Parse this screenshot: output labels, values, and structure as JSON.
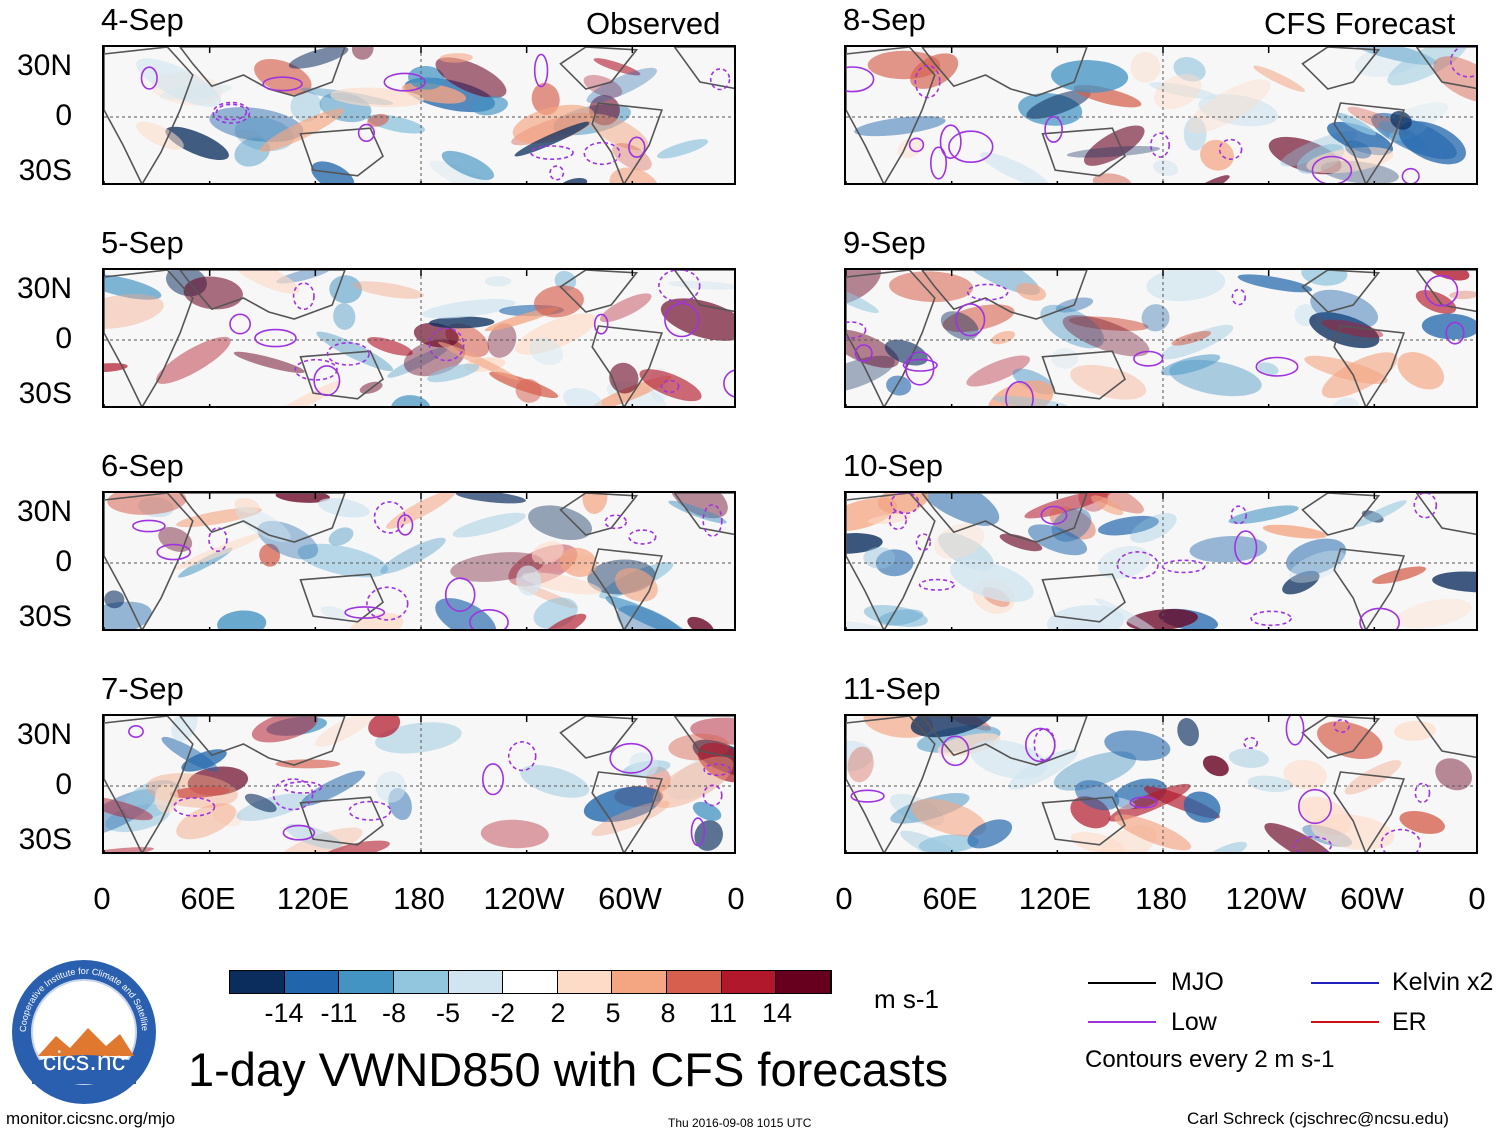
{
  "columns": {
    "left_title": "Observed",
    "right_title": "CFS Forecast"
  },
  "panels": {
    "left": [
      {
        "date": "4-Sep"
      },
      {
        "date": "5-Sep"
      },
      {
        "date": "6-Sep"
      },
      {
        "date": "7-Sep"
      }
    ],
    "right": [
      {
        "date": "8-Sep"
      },
      {
        "date": "9-Sep"
      },
      {
        "date": "10-Sep"
      },
      {
        "date": "11-Sep"
      }
    ]
  },
  "lat_labels": [
    "30N",
    "0",
    "30S"
  ],
  "lon_labels": [
    "0",
    "60E",
    "120E",
    "180",
    "120W",
    "60W",
    "0"
  ],
  "colorbar": {
    "colors": [
      "#0b2d5e",
      "#2166ac",
      "#4393c3",
      "#92c5de",
      "#d1e5f0",
      "#ffffff",
      "#fddbc7",
      "#f4a582",
      "#d6604d",
      "#b2182b",
      "#67001f"
    ],
    "tick_labels": [
      "-14",
      "-11",
      "-8",
      "-5",
      "-2",
      "2",
      "5",
      "8",
      "11",
      "14"
    ],
    "units": "m s-1"
  },
  "legend": {
    "items": [
      {
        "label": "MJO",
        "color": "#000000"
      },
      {
        "label": "Kelvin x2",
        "color": "#2020c0"
      },
      {
        "label": "Low",
        "color": "#a033e0"
      },
      {
        "label": "ER",
        "color": "#d01010"
      }
    ],
    "note": "Contours every 2 m s-1"
  },
  "logo": {
    "text": "cics.nc",
    "ring_text": "Cooperative Institute for Climate and Satellites"
  },
  "main_title": "1-day VWND850 with CFS forecasts",
  "footer": {
    "url": "monitor.cicsnc.org/mjo",
    "timestamp": "Thu 2016-09-08 1015 UTC",
    "author": "Carl Schreck (cjschrec@ncsu.edu)"
  }
}
